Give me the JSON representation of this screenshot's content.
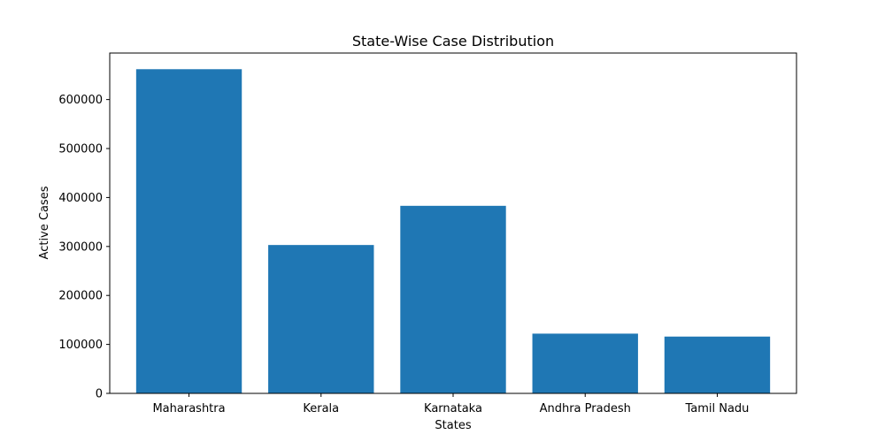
{
  "chart_data": {
    "type": "bar",
    "title": "State-Wise Case Distribution",
    "xlabel": "States",
    "ylabel": "Active Cases",
    "categories": [
      "Maharashtra",
      "Kerala",
      "Karnataka",
      "Andhra Pradesh",
      "Tamil Nadu"
    ],
    "values": [
      662000,
      303000,
      383000,
      122000,
      116000
    ],
    "ylim": [
      0,
      695000
    ],
    "yticks": [
      0,
      100000,
      200000,
      300000,
      400000,
      500000,
      600000
    ],
    "ytick_labels": [
      "0",
      "100000",
      "200000",
      "300000",
      "400000",
      "500000",
      "600000"
    ],
    "bar_color": "#1f77b4",
    "grid": false,
    "legend": false
  }
}
